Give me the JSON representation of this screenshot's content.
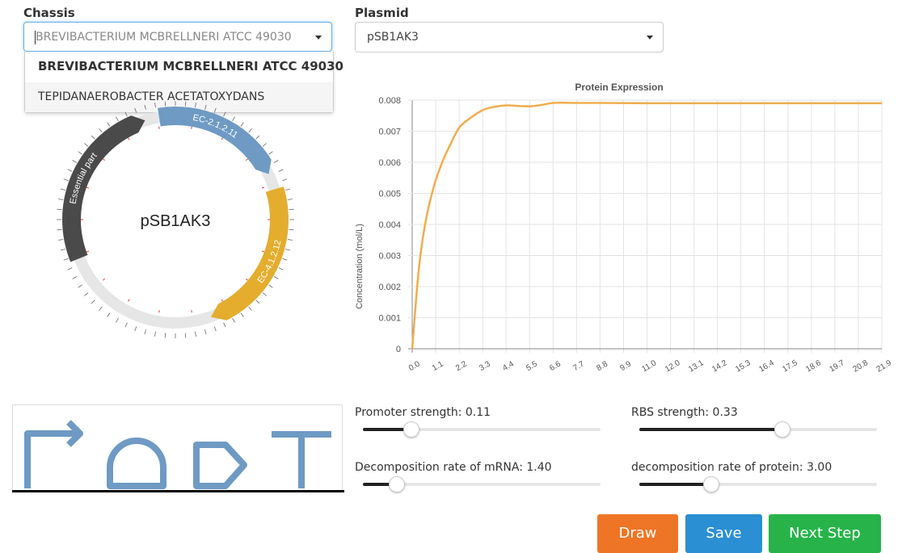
{
  "chassis": {
    "label": "Chassis",
    "value": "BREVIBACTERIUM MCBRELLNERI ATCC 49030",
    "options": [
      "BREVIBACTERIUM MCBRELLNERI ATCC 49030",
      "TEPIDANAEROBACTER ACETATOXYDANS"
    ]
  },
  "plasmid": {
    "label": "Plasmid",
    "value": "pSB1AK3",
    "map": {
      "name": "pSB1AK3",
      "segments": [
        {
          "label": "Essential part",
          "color": "#4a4a4a"
        },
        {
          "label": "EC-2.1.2.11",
          "color": "#6e9ac4"
        },
        {
          "label": "EC-4.1.2.12",
          "color": "#e4ad2e"
        }
      ]
    }
  },
  "chart_data": {
    "type": "line",
    "title": "Protein Expression",
    "xlabel": "",
    "ylabel": "Concentration (mol/L)",
    "x_ticks": [
      "0.0",
      "1.1",
      "2.2",
      "3.3",
      "4.4",
      "5.5",
      "6.6",
      "7.7",
      "8.8",
      "9.9",
      "11.0",
      "12.0",
      "13.1",
      "14.2",
      "15.3",
      "16.4",
      "17.5",
      "18.6",
      "19.7",
      "20.8",
      "21.9"
    ],
    "y_ticks": [
      "0",
      "0.001",
      "0.002",
      "0.003",
      "0.004",
      "0.005",
      "0.006",
      "0.007",
      "0.008"
    ],
    "ylim": [
      0,
      0.008
    ],
    "xlim": [
      0,
      21.9
    ],
    "grid": true,
    "color": "#f0ad4e",
    "series": [
      {
        "x": [
          0,
          0.3,
          0.6,
          1.0,
          1.4,
          1.8,
          2.2,
          2.7,
          3.3,
          3.8,
          4.4,
          5.0,
          5.5,
          6.0,
          6.6,
          7.7,
          8.8,
          11.0,
          14.2,
          17.5,
          20.8,
          21.9
        ],
        "values": [
          0,
          0.0025,
          0.004,
          0.0052,
          0.006,
          0.0066,
          0.00712,
          0.00742,
          0.00768,
          0.00778,
          0.00783,
          0.00781,
          0.0078,
          0.00784,
          0.00791,
          0.00791,
          0.00791,
          0.0079,
          0.0079,
          0.0079,
          0.0079,
          0.0079
        ]
      }
    ]
  },
  "sliders": [
    {
      "label": "Promoter strength: 0.11",
      "fraction": 0.2
    },
    {
      "label": "RBS strength: 0.33",
      "fraction": 0.6
    },
    {
      "label": "Decomposition rate of mRNA: 1.40",
      "fraction": 0.14
    },
    {
      "label": "decomposition rate of protein: 3.00",
      "fraction": 0.3
    }
  ],
  "buttons": {
    "draw": "Draw",
    "save": "Save",
    "next": "Next Step"
  },
  "colors": {
    "draw": "#ee7526",
    "save": "#2b8fd3",
    "next": "#27b34a",
    "glyph": "#6e9ac4"
  }
}
